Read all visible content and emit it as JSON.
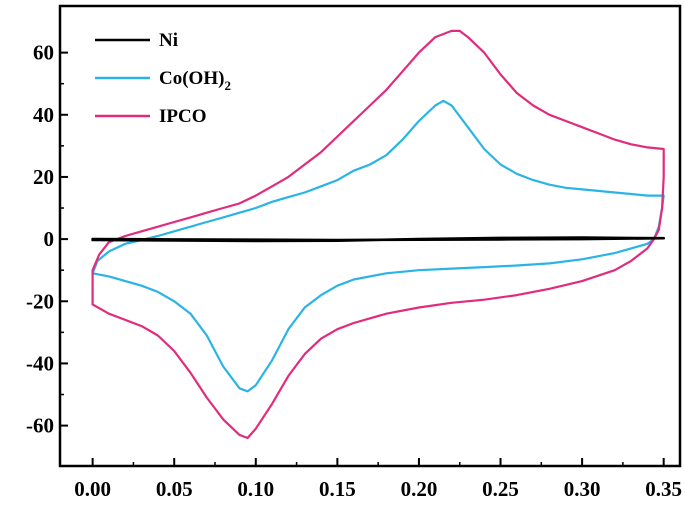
{
  "chart_data": {
    "type": "line",
    "title": "",
    "xlabel": "",
    "ylabel": "",
    "xlim": [
      -0.02,
      0.36
    ],
    "ylim": [
      -73,
      75
    ],
    "x_ticks": [
      "0.00",
      "0.05",
      "0.10",
      "0.15",
      "0.20",
      "0.25",
      "0.30",
      "0.35"
    ],
    "x_tick_values": [
      0.0,
      0.05,
      0.1,
      0.15,
      0.2,
      0.25,
      0.3,
      0.35
    ],
    "y_ticks": [
      "-60",
      "-40",
      "-20",
      "0",
      "20",
      "40",
      "60"
    ],
    "y_tick_values": [
      -60,
      -40,
      -20,
      0,
      20,
      40,
      60
    ],
    "grid": false,
    "legend_position": "top-left",
    "series": [
      {
        "name": "Ni",
        "legend_text": "Ni",
        "color": "#000000",
        "points": [
          [
            0.0,
            -0.3
          ],
          [
            0.05,
            -0.4
          ],
          [
            0.1,
            -0.6
          ],
          [
            0.15,
            -0.5
          ],
          [
            0.2,
            0.0
          ],
          [
            0.25,
            0.4
          ],
          [
            0.3,
            0.5
          ],
          [
            0.35,
            0.3
          ],
          [
            0.3,
            0.0
          ],
          [
            0.25,
            -0.1
          ],
          [
            0.2,
            -0.2
          ],
          [
            0.15,
            -0.3
          ],
          [
            0.1,
            -0.2
          ],
          [
            0.05,
            -0.1
          ],
          [
            0.0,
            0.0
          ]
        ]
      },
      {
        "name": "Co(OH)2",
        "legend_text": "Co(OH)",
        "legend_sub": "2",
        "color": "#2ab4e6",
        "points": [
          [
            0.0,
            -11
          ],
          [
            0.003,
            -7
          ],
          [
            0.01,
            -4
          ],
          [
            0.02,
            -1.5
          ],
          [
            0.03,
            -0.3
          ],
          [
            0.04,
            1
          ],
          [
            0.05,
            2.5
          ],
          [
            0.06,
            4
          ],
          [
            0.07,
            5.5
          ],
          [
            0.08,
            7
          ],
          [
            0.09,
            8.5
          ],
          [
            0.1,
            10
          ],
          [
            0.11,
            12
          ],
          [
            0.12,
            13.5
          ],
          [
            0.13,
            15
          ],
          [
            0.14,
            17
          ],
          [
            0.15,
            19
          ],
          [
            0.16,
            22
          ],
          [
            0.17,
            24
          ],
          [
            0.18,
            27
          ],
          [
            0.19,
            32
          ],
          [
            0.2,
            38
          ],
          [
            0.21,
            43
          ],
          [
            0.215,
            44.5
          ],
          [
            0.22,
            43
          ],
          [
            0.23,
            36
          ],
          [
            0.24,
            29
          ],
          [
            0.25,
            24
          ],
          [
            0.26,
            21
          ],
          [
            0.27,
            19
          ],
          [
            0.28,
            17.5
          ],
          [
            0.29,
            16.5
          ],
          [
            0.3,
            16
          ],
          [
            0.31,
            15.5
          ],
          [
            0.32,
            15
          ],
          [
            0.33,
            14.5
          ],
          [
            0.34,
            14
          ],
          [
            0.345,
            14
          ],
          [
            0.35,
            14
          ],
          [
            0.349,
            10
          ],
          [
            0.347,
            4
          ],
          [
            0.344,
            0
          ],
          [
            0.34,
            -1.5
          ],
          [
            0.33,
            -3
          ],
          [
            0.32,
            -4.5
          ],
          [
            0.3,
            -6.5
          ],
          [
            0.28,
            -7.8
          ],
          [
            0.26,
            -8.5
          ],
          [
            0.24,
            -9
          ],
          [
            0.22,
            -9.5
          ],
          [
            0.2,
            -10
          ],
          [
            0.18,
            -11
          ],
          [
            0.16,
            -13
          ],
          [
            0.15,
            -15
          ],
          [
            0.14,
            -18
          ],
          [
            0.13,
            -22
          ],
          [
            0.12,
            -29
          ],
          [
            0.11,
            -39
          ],
          [
            0.1,
            -47
          ],
          [
            0.095,
            -49
          ],
          [
            0.09,
            -48
          ],
          [
            0.08,
            -41
          ],
          [
            0.07,
            -31
          ],
          [
            0.06,
            -24
          ],
          [
            0.05,
            -20
          ],
          [
            0.04,
            -17
          ],
          [
            0.03,
            -15
          ],
          [
            0.02,
            -13.5
          ],
          [
            0.01,
            -12
          ],
          [
            0.0,
            -11
          ]
        ]
      },
      {
        "name": "IPCO",
        "legend_text": "IPCO",
        "color": "#e12b7d",
        "points": [
          [
            0.0,
            -21
          ],
          [
            0.0,
            -10
          ],
          [
            0.004,
            -5
          ],
          [
            0.01,
            -1
          ],
          [
            0.02,
            1
          ],
          [
            0.03,
            2.5
          ],
          [
            0.04,
            4
          ],
          [
            0.05,
            5.5
          ],
          [
            0.06,
            7
          ],
          [
            0.07,
            8.5
          ],
          [
            0.08,
            10
          ],
          [
            0.09,
            11.5
          ],
          [
            0.1,
            14
          ],
          [
            0.11,
            17
          ],
          [
            0.12,
            20
          ],
          [
            0.13,
            24
          ],
          [
            0.14,
            28
          ],
          [
            0.15,
            33
          ],
          [
            0.16,
            38
          ],
          [
            0.17,
            43
          ],
          [
            0.18,
            48
          ],
          [
            0.19,
            54
          ],
          [
            0.2,
            60
          ],
          [
            0.21,
            65
          ],
          [
            0.22,
            67
          ],
          [
            0.225,
            67
          ],
          [
            0.23,
            65
          ],
          [
            0.24,
            60
          ],
          [
            0.25,
            53
          ],
          [
            0.26,
            47
          ],
          [
            0.27,
            43
          ],
          [
            0.28,
            40
          ],
          [
            0.29,
            38
          ],
          [
            0.3,
            36
          ],
          [
            0.31,
            34
          ],
          [
            0.32,
            32
          ],
          [
            0.33,
            30.5
          ],
          [
            0.34,
            29.5
          ],
          [
            0.35,
            29
          ],
          [
            0.35,
            20
          ],
          [
            0.349,
            10
          ],
          [
            0.347,
            3
          ],
          [
            0.344,
            0
          ],
          [
            0.34,
            -3
          ],
          [
            0.33,
            -7
          ],
          [
            0.32,
            -10
          ],
          [
            0.3,
            -13.5
          ],
          [
            0.28,
            -16
          ],
          [
            0.26,
            -18
          ],
          [
            0.24,
            -19.5
          ],
          [
            0.22,
            -20.5
          ],
          [
            0.2,
            -22
          ],
          [
            0.18,
            -24
          ],
          [
            0.16,
            -27
          ],
          [
            0.15,
            -29
          ],
          [
            0.14,
            -32
          ],
          [
            0.13,
            -37
          ],
          [
            0.12,
            -44
          ],
          [
            0.11,
            -53
          ],
          [
            0.1,
            -61
          ],
          [
            0.095,
            -64
          ],
          [
            0.09,
            -63
          ],
          [
            0.08,
            -58
          ],
          [
            0.07,
            -51
          ],
          [
            0.06,
            -43
          ],
          [
            0.05,
            -36
          ],
          [
            0.04,
            -31
          ],
          [
            0.03,
            -28
          ],
          [
            0.02,
            -26
          ],
          [
            0.01,
            -24
          ],
          [
            0.0,
            -21
          ]
        ]
      }
    ]
  }
}
